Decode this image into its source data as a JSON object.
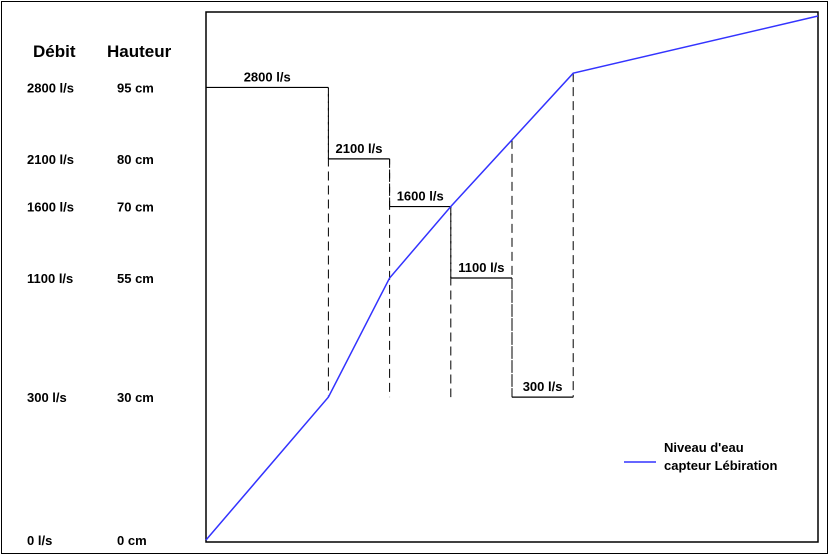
{
  "chart_data": {
    "type": "line",
    "headers": {
      "debit": "Débit",
      "hauteur": "Hauteur"
    },
    "y_levels": [
      {
        "debit": "2800 l/s",
        "hauteur": "95 cm",
        "cm": 95
      },
      {
        "debit": "2100 l/s",
        "hauteur": "80 cm",
        "cm": 80
      },
      {
        "debit": "1600 l/s",
        "hauteur": "70 cm",
        "cm": 70
      },
      {
        "debit": "1100 l/s",
        "hauteur": "55 cm",
        "cm": 55
      },
      {
        "debit": "300 l/s",
        "hauteur": "30 cm",
        "cm": 30
      },
      {
        "debit": "0 l/s",
        "hauteur": "0 cm",
        "cm": 0
      }
    ],
    "ylim": [
      0,
      110
    ],
    "xlim": [
      0,
      10
    ],
    "series": [
      {
        "name": "Niveau d'eau capteur Lébiration",
        "color": "#3333ff",
        "points": [
          [
            0,
            0
          ],
          [
            2,
            30
          ],
          [
            3,
            55
          ],
          [
            4,
            70
          ],
          [
            5,
            84
          ],
          [
            6,
            98
          ],
          [
            10,
            110
          ]
        ]
      }
    ],
    "steps": [
      {
        "label": "2800 l/s",
        "x_start": 0,
        "x_end": 2,
        "cm": 95
      },
      {
        "label": "2100 l/s",
        "x_start": 2,
        "x_end": 3,
        "cm": 80
      },
      {
        "label": "1600 l/s",
        "x_start": 3,
        "x_end": 4,
        "cm": 70
      },
      {
        "label": "1100 l/s",
        "x_start": 4,
        "x_end": 5,
        "cm": 55
      },
      {
        "label": "300 l/s",
        "x_start": 5,
        "x_end": 6,
        "cm": 30
      }
    ],
    "legend": {
      "line1": "Niveau d'eau",
      "line2": "capteur Lébiration",
      "color": "#3333ff",
      "position": "bottom-right"
    }
  }
}
